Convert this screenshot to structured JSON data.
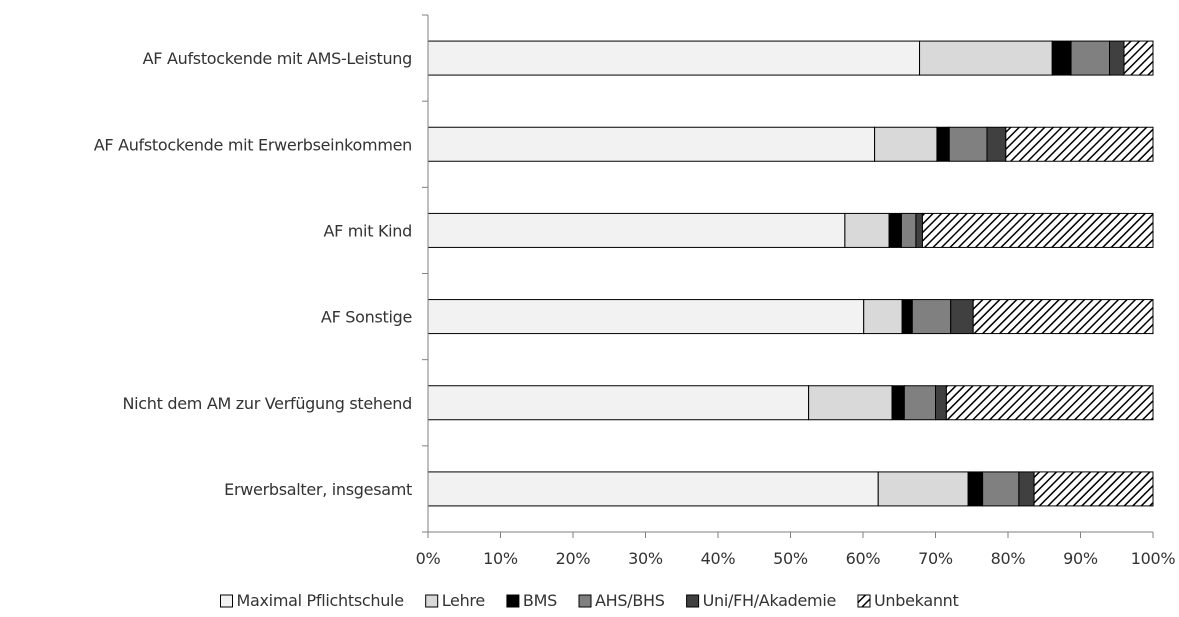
{
  "chart_data": {
    "type": "bar",
    "orientation": "horizontal",
    "stacked": true,
    "percent": true,
    "title": "",
    "xlabel": "",
    "ylabel": "",
    "xlim": [
      0,
      100
    ],
    "x_ticks": [
      "0%",
      "10%",
      "20%",
      "30%",
      "40%",
      "50%",
      "60%",
      "70%",
      "80%",
      "90%",
      "100%"
    ],
    "grid": false,
    "legend_position": "bottom",
    "categories": [
      "AF Aufstockende mit AMS-Leistung",
      "AF Aufstockende mit Erwerbseinkommen",
      "AF mit Kind",
      "AF Sonstige",
      "Nicht dem AM zur Verfügung stehend",
      "Erwerbsalter, insgesamt"
    ],
    "series": [
      {
        "name": "Maximal Pflichtschule",
        "color": "#f2f2f2",
        "pattern": "solid",
        "values": [
          67.8,
          61.6,
          57.5,
          60.1,
          52.5,
          62.1
        ]
      },
      {
        "name": "Lehre",
        "color": "#d9d9d9",
        "pattern": "solid",
        "values": [
          18.3,
          8.6,
          6.1,
          5.3,
          11.5,
          12.4
        ]
      },
      {
        "name": "BMS",
        "color": "#000000",
        "pattern": "solid",
        "values": [
          2.6,
          1.7,
          1.7,
          1.4,
          1.7,
          2.0
        ]
      },
      {
        "name": "AHS/BHS",
        "color": "#808080",
        "pattern": "solid",
        "values": [
          5.3,
          5.2,
          2.0,
          5.3,
          4.3,
          5.0
        ]
      },
      {
        "name": "Uni/FH/Akademie",
        "color": "#404040",
        "pattern": "solid",
        "values": [
          2.0,
          2.6,
          0.9,
          3.1,
          1.5,
          2.1
        ]
      },
      {
        "name": "Unbekannt",
        "color": "#000000",
        "pattern": "hatch",
        "values": [
          4.0,
          20.3,
          31.8,
          24.8,
          28.5,
          16.4
        ]
      }
    ]
  }
}
